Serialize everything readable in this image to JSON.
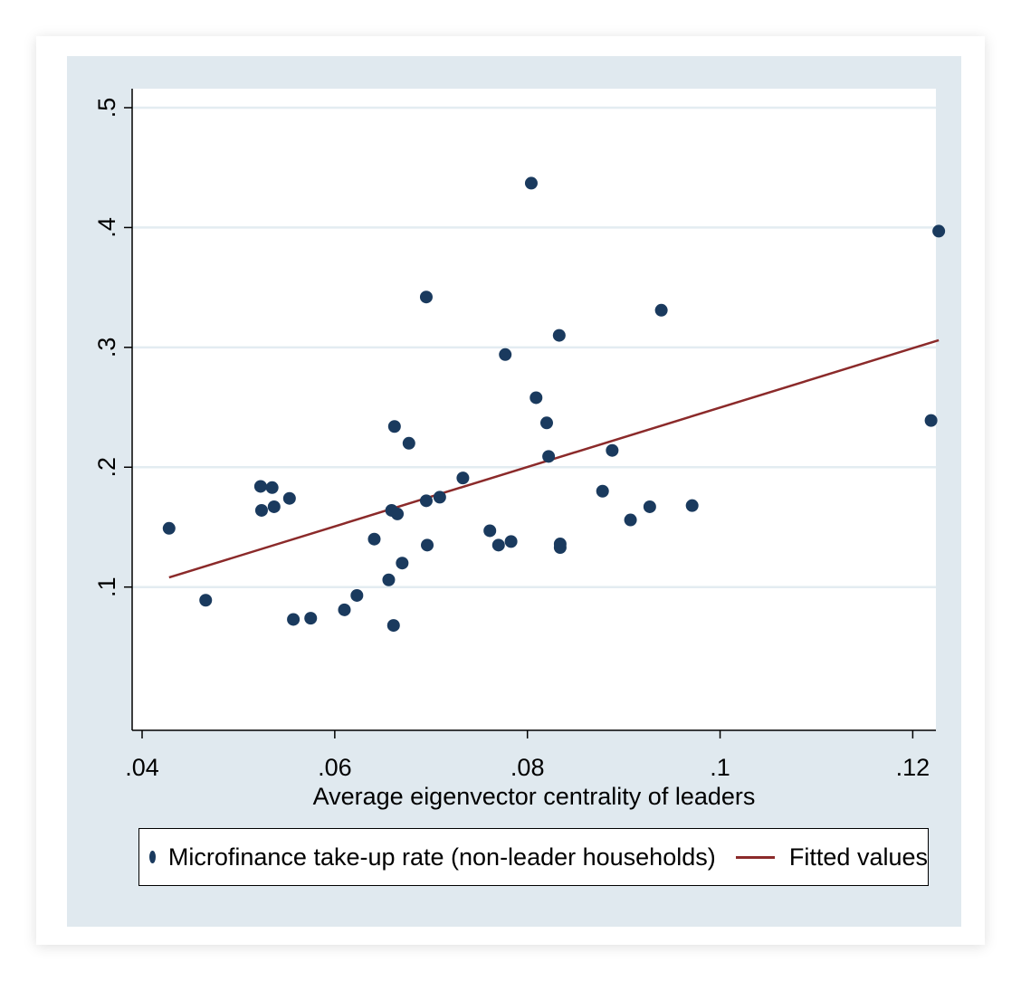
{
  "chart_data": {
    "type": "scatter",
    "title": "",
    "xlabel": "Average eigenvector centrality of leaders",
    "ylabel": "",
    "xlim": [
      0.04,
      0.1225
    ],
    "ylim": [
      -0.012,
      0.5
    ],
    "x_ticks": [
      {
        "value": 0.04,
        "label": ".04"
      },
      {
        "value": 0.06,
        "label": ".06"
      },
      {
        "value": 0.08,
        "label": ".08"
      },
      {
        "value": 0.1,
        "label": ".1"
      },
      {
        "value": 0.12,
        "label": ".12"
      }
    ],
    "y_ticks": [
      {
        "value": 0.1,
        "label": ".1"
      },
      {
        "value": 0.2,
        "label": ".2"
      },
      {
        "value": 0.3,
        "label": ".3"
      },
      {
        "value": 0.4,
        "label": ".4"
      },
      {
        "value": 0.5,
        "label": ".5"
      }
    ],
    "grid": true,
    "legend_position": "bottom",
    "series": [
      {
        "name": "Microfinance take-up rate (non-leader households)",
        "kind": "scatter",
        "color": "#1a3a5e",
        "points": [
          [
            0.0428,
            0.149
          ],
          [
            0.0466,
            0.089
          ],
          [
            0.0523,
            0.184
          ],
          [
            0.0535,
            0.183
          ],
          [
            0.0524,
            0.164
          ],
          [
            0.0537,
            0.167
          ],
          [
            0.0553,
            0.174
          ],
          [
            0.0557,
            0.073
          ],
          [
            0.0575,
            0.074
          ],
          [
            0.061,
            0.081
          ],
          [
            0.0623,
            0.093
          ],
          [
            0.0641,
            0.14
          ],
          [
            0.0656,
            0.106
          ],
          [
            0.0659,
            0.164
          ],
          [
            0.0661,
            0.068
          ],
          [
            0.0662,
            0.234
          ],
          [
            0.0665,
            0.161
          ],
          [
            0.067,
            0.12
          ],
          [
            0.0677,
            0.22
          ],
          [
            0.0695,
            0.172
          ],
          [
            0.0696,
            0.135
          ],
          [
            0.0695,
            0.342
          ],
          [
            0.0709,
            0.175
          ],
          [
            0.0733,
            0.191
          ],
          [
            0.0761,
            0.147
          ],
          [
            0.077,
            0.135
          ],
          [
            0.0777,
            0.294
          ],
          [
            0.0783,
            0.138
          ],
          [
            0.0804,
            0.437
          ],
          [
            0.0809,
            0.258
          ],
          [
            0.082,
            0.237
          ],
          [
            0.0822,
            0.209
          ],
          [
            0.0833,
            0.31
          ],
          [
            0.0834,
            0.136
          ],
          [
            0.0834,
            0.133
          ],
          [
            0.0878,
            0.18
          ],
          [
            0.0888,
            0.214
          ],
          [
            0.0907,
            0.156
          ],
          [
            0.0927,
            0.167
          ],
          [
            0.0939,
            0.331
          ],
          [
            0.0971,
            0.168
          ],
          [
            0.1219,
            0.239
          ],
          [
            0.1227,
            0.397
          ]
        ]
      },
      {
        "name": "Fitted values",
        "kind": "line",
        "color": "#8b2a2a",
        "points": [
          [
            0.0428,
            0.108
          ],
          [
            0.1227,
            0.306
          ]
        ]
      }
    ]
  }
}
